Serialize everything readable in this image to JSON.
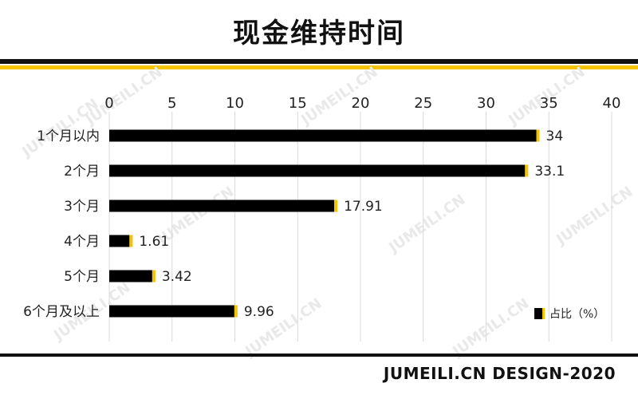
{
  "title": "现金维持时间",
  "footer": "JUMEILI.CN DESIGN-2020",
  "watermark": "JUMEILI.CN",
  "colors": {
    "bar": "#000000",
    "accent": "#f5c400",
    "grid": "#d9d9d9"
  },
  "chart_data": {
    "type": "bar",
    "orientation": "horizontal",
    "categories": [
      "1个月以内",
      "2个月",
      "3个月",
      "4个月",
      "5个月",
      "6个月及以上"
    ],
    "series": [
      {
        "name": "占比（%）",
        "values": [
          34,
          33.1,
          17.91,
          1.61,
          3.42,
          9.96
        ]
      }
    ],
    "value_labels": [
      "34",
      "33.1",
      "17.91",
      "1.61",
      "3.42",
      "9.96"
    ],
    "xlim": [
      0,
      40
    ],
    "xticks": [
      "0",
      "5",
      "10",
      "15",
      "20",
      "25",
      "30",
      "35",
      "40"
    ],
    "x_axis_position": "top",
    "grid": true,
    "legend": "bottom-right"
  }
}
